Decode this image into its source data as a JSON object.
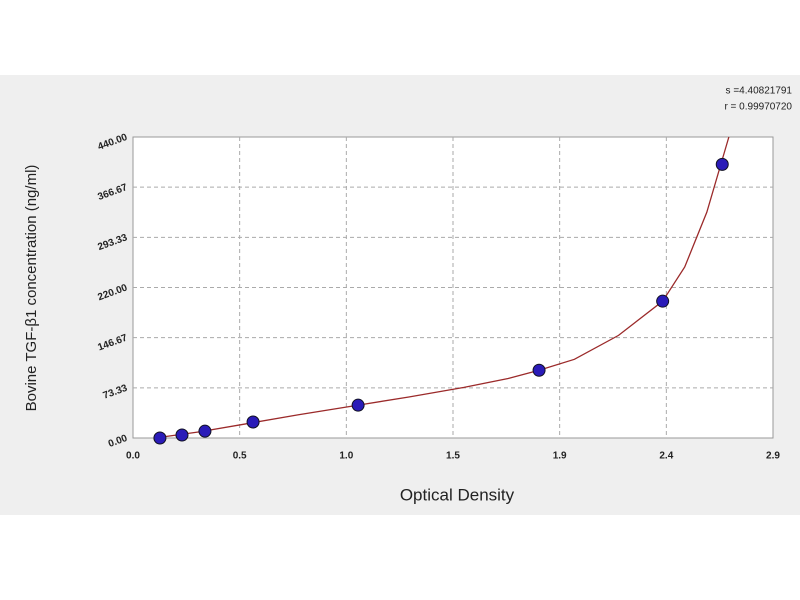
{
  "chart_data": {
    "type": "scatter",
    "x_label": "Optical Density",
    "y_label": "Bovine TGF-β1 concentration (ng/ml)",
    "annotations": [
      "s =4.40821791",
      "r = 0.99970720"
    ],
    "series": [
      {
        "color": "#2a1bb8",
        "x": [
          0.122,
          0.222,
          0.326,
          0.544,
          1.02,
          1.84,
          2.4,
          2.67
        ],
        "values": [
          0,
          4.4,
          10,
          23.4,
          48,
          99,
          200,
          400
        ]
      }
    ],
    "fit_line": {
      "color": "#9b2a2a",
      "x": [
        0.1,
        0.3,
        0.5,
        0.75,
        1.0,
        1.25,
        1.5,
        1.7,
        1.84,
        2.0,
        2.2,
        2.4,
        2.5,
        2.6,
        2.7
      ],
      "values": [
        0,
        9,
        20,
        34,
        47,
        60,
        74,
        87,
        99,
        115,
        150,
        200,
        250,
        330,
        440
      ]
    },
    "xlim": [
      0,
      2.9
    ],
    "xticks": [
      {
        "value": 0,
        "label": "0.0"
      },
      {
        "value": 0.4833,
        "label": "0.5"
      },
      {
        "value": 0.9667,
        "label": "1.0"
      },
      {
        "value": 1.45,
        "label": "1.5"
      },
      {
        "value": 1.9333,
        "label": "1.9"
      },
      {
        "value": 2.4167,
        "label": "2.4"
      },
      {
        "value": 2.9,
        "label": "2.9"
      }
    ],
    "ylim": [
      0,
      440
    ],
    "yticks": [
      {
        "value": 0,
        "label": "0.00"
      },
      {
        "value": 73.333,
        "label": "73.33"
      },
      {
        "value": 146.667,
        "label": "146.67"
      },
      {
        "value": 220,
        "label": "220.00"
      },
      {
        "value": 293.333,
        "label": "293.33"
      },
      {
        "value": 366.667,
        "label": "366.67"
      },
      {
        "value": 440,
        "label": "440.00"
      }
    ],
    "grid": true
  }
}
